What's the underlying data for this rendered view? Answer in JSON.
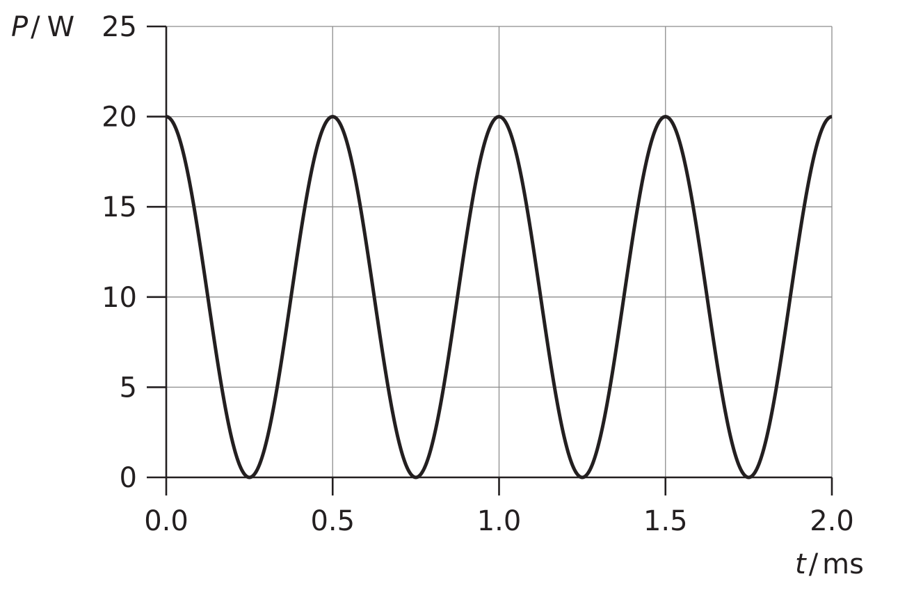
{
  "chart_data": {
    "type": "line",
    "title": "",
    "x_axis": {
      "variable": "t",
      "unit": "ms",
      "range": [
        0,
        2
      ],
      "ticks": [
        0,
        0.5,
        1,
        1.5,
        2
      ],
      "tick_labels": [
        "0.0",
        "0.5",
        "1.0",
        "1.5",
        "2.0"
      ]
    },
    "y_axis": {
      "variable": "P",
      "unit": "W",
      "range": [
        0,
        25
      ],
      "ticks": [
        0,
        5,
        10,
        15,
        20,
        25
      ],
      "tick_labels": [
        "0",
        "5",
        "10",
        "15",
        "20",
        "25"
      ]
    },
    "grid": true,
    "series": [
      {
        "color": "#231f20",
        "function": "P = 20·cos²(2πt/1.0)",
        "x": [
          0,
          0.125,
          0.25,
          0.375,
          0.5,
          0.625,
          0.75,
          0.875,
          1,
          1.125,
          1.25,
          1.375,
          1.5,
          1.625,
          1.75,
          1.875,
          2
        ],
        "y": [
          20,
          10,
          0,
          10,
          20,
          10,
          0,
          10,
          20,
          10,
          0,
          10,
          20,
          10,
          0,
          10,
          20
        ]
      }
    ]
  }
}
